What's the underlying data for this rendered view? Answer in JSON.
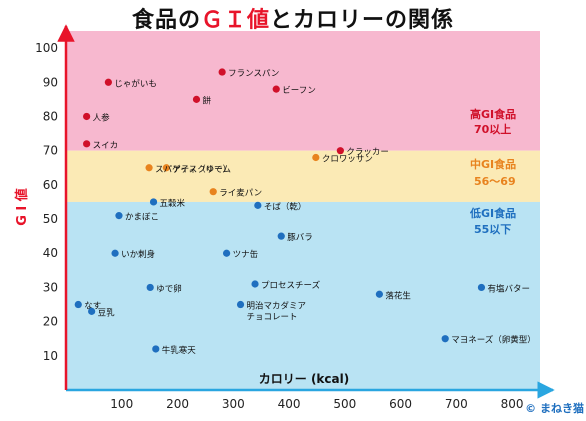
{
  "title": {
    "part1": "食品の",
    "part2": "ＧＩ値",
    "part3": "とカロリーの関係"
  },
  "copyright": "© まねき猫",
  "colors": {
    "high": "#f7b8cf",
    "mid": "#fbeab5",
    "low": "#b9e3f3",
    "axis": "#2aa6e0",
    "yaxis": "#e8142a",
    "point": "#d0102a",
    "point_mid": "#e8831e",
    "point_low": "#1f6fbf",
    "high_text": "#d0102a",
    "mid_text": "#e8831e",
    "low_text": "#1f6fbf"
  },
  "zones": [
    {
      "label": "高GI食品",
      "range": "70以上",
      "color_key": "high_text"
    },
    {
      "label": "中GI食品",
      "range": "56～69",
      "color_key": "mid_text"
    },
    {
      "label": "低GI食品",
      "range": "55以下",
      "color_key": "low_text"
    }
  ],
  "chart_data": {
    "type": "scatter",
    "xlabel": "カロリー (kcal)",
    "ylabel": "G I 値",
    "xlim": [
      0,
      850
    ],
    "ylim": [
      0,
      105
    ],
    "x_ticks": [
      100,
      200,
      300,
      400,
      500,
      600,
      700,
      800
    ],
    "y_ticks": [
      10,
      20,
      30,
      40,
      50,
      60,
      70,
      80,
      90,
      100
    ],
    "bands": [
      {
        "from": 70,
        "to": 105,
        "zone": "high"
      },
      {
        "from": 55,
        "to": 70,
        "zone": "mid"
      },
      {
        "from": 0,
        "to": 55,
        "zone": "low"
      }
    ],
    "points": [
      {
        "label": "フランスパン",
        "x": 280,
        "y": 93
      },
      {
        "label": "じゃがいも",
        "x": 76,
        "y": 90
      },
      {
        "label": "ビーフン",
        "x": 377,
        "y": 88
      },
      {
        "label": "餅",
        "x": 234,
        "y": 85
      },
      {
        "label": "人参",
        "x": 37,
        "y": 80
      },
      {
        "label": "スイカ",
        "x": 37,
        "y": 72
      },
      {
        "label": "クラッカー",
        "x": 492,
        "y": 70
      },
      {
        "label": "クロワッサン",
        "x": 448,
        "y": 68
      },
      {
        "label": "アイスクリーム",
        "x": 180,
        "y": 65
      },
      {
        "label": "スパゲティ（ゆで）",
        "x": 149,
        "y": 65
      },
      {
        "label": "ライ麦パン",
        "x": 264,
        "y": 58
      },
      {
        "label": "五穀米",
        "x": 157,
        "y": 55
      },
      {
        "label": "そば（乾）",
        "x": 344,
        "y": 54
      },
      {
        "label": "かまぼこ",
        "x": 95,
        "y": 51
      },
      {
        "label": "豚バラ",
        "x": 386,
        "y": 45
      },
      {
        "label": "いか刺身",
        "x": 88,
        "y": 40
      },
      {
        "label": "ツナ缶",
        "x": 288,
        "y": 40
      },
      {
        "label": "ゆで卵",
        "x": 151,
        "y": 30
      },
      {
        "label": "プロセスチーズ",
        "x": 339,
        "y": 31
      },
      {
        "label": "落花生",
        "x": 562,
        "y": 28
      },
      {
        "label": "有塩バター",
        "x": 745,
        "y": 30
      },
      {
        "label": "明治マカダミア\nチョコレート",
        "x": 313,
        "y": 25
      },
      {
        "label": "なす",
        "x": 22,
        "y": 25
      },
      {
        "label": "豆乳",
        "x": 46,
        "y": 23
      },
      {
        "label": "マヨネーズ（卵黄型）",
        "x": 680,
        "y": 15
      },
      {
        "label": "牛乳寒天",
        "x": 161,
        "y": 12
      }
    ]
  }
}
